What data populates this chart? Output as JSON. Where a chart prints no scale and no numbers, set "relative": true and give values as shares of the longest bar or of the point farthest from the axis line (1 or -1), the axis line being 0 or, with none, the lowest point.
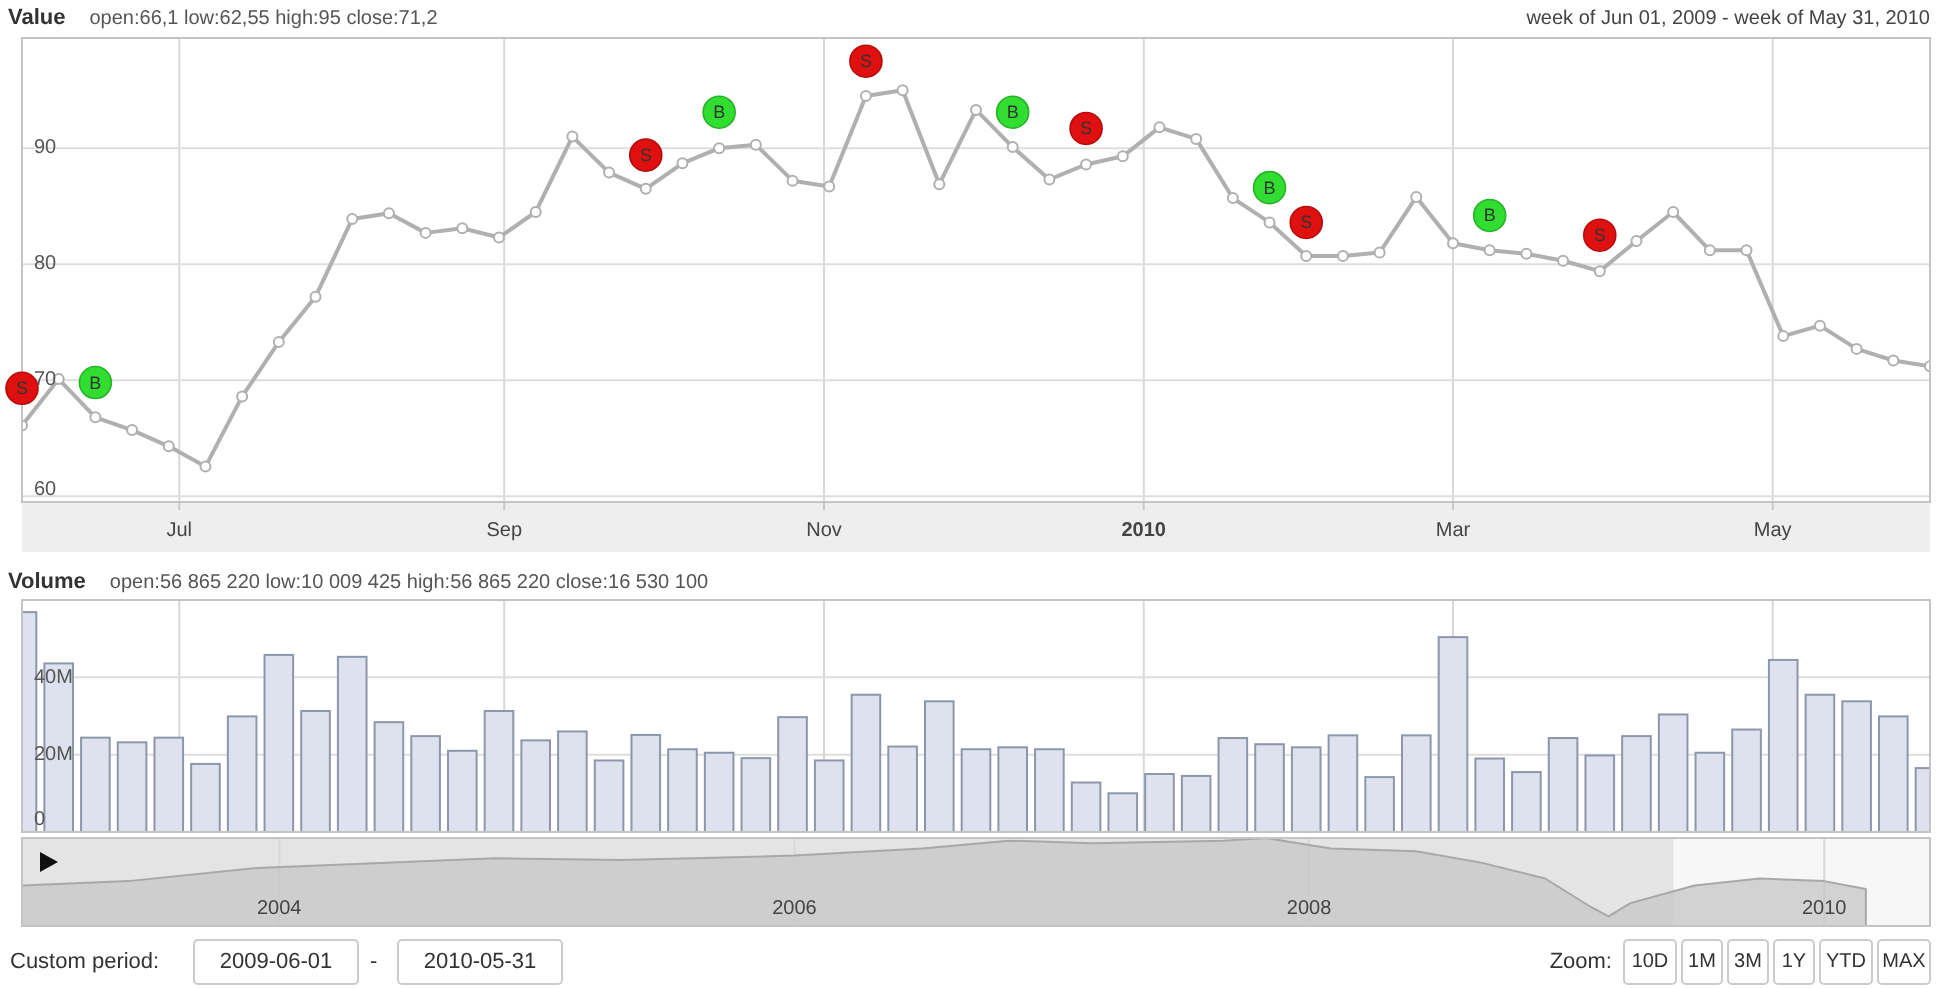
{
  "chart_data": [
    {
      "type": "line",
      "title": "Value",
      "subtitle": "open:66,1 low:62,55 high:95 close:71,2",
      "marker": "circle",
      "grid": true,
      "x": [
        "2009-06-01",
        "2009-06-08",
        "2009-06-15",
        "2009-06-22",
        "2009-06-29",
        "2009-07-06",
        "2009-07-13",
        "2009-07-20",
        "2009-07-27",
        "2009-08-03",
        "2009-08-10",
        "2009-08-17",
        "2009-08-24",
        "2009-08-31",
        "2009-09-07",
        "2009-09-14",
        "2009-09-21",
        "2009-09-28",
        "2009-10-05",
        "2009-10-12",
        "2009-10-19",
        "2009-10-26",
        "2009-11-02",
        "2009-11-09",
        "2009-11-16",
        "2009-11-23",
        "2009-11-30",
        "2009-12-07",
        "2009-12-14",
        "2009-12-21",
        "2009-12-28",
        "2010-01-04",
        "2010-01-11",
        "2010-01-18",
        "2010-01-25",
        "2010-02-01",
        "2010-02-08",
        "2010-02-15",
        "2010-02-22",
        "2010-03-01",
        "2010-03-08",
        "2010-03-15",
        "2010-03-22",
        "2010-03-29",
        "2010-04-05",
        "2010-04-12",
        "2010-04-19",
        "2010-04-26",
        "2010-05-03",
        "2010-05-10",
        "2010-05-17",
        "2010-05-24",
        "2010-05-31"
      ],
      "xlim": [
        "2009-06-01",
        "2010-05-31"
      ],
      "xticks": [
        {
          "value": "2009-07-01",
          "label": "Jul"
        },
        {
          "value": "2009-09-01",
          "label": "Sep"
        },
        {
          "value": "2009-11-01",
          "label": "Nov"
        },
        {
          "value": "2010-01-01",
          "label": "2010"
        },
        {
          "value": "2010-03-01",
          "label": "Mar"
        },
        {
          "value": "2010-05-01",
          "label": "May"
        }
      ],
      "ylim": [
        59.5,
        99.5
      ],
      "yticks": [
        60,
        70,
        80,
        90
      ],
      "series": [
        {
          "color": "#b0b0b0",
          "values": [
            66.1,
            70.1,
            66.8,
            65.7,
            64.3,
            62.55,
            68.6,
            73.3,
            77.2,
            83.9,
            84.4,
            82.7,
            83.1,
            82.3,
            84.5,
            91.0,
            87.9,
            86.5,
            88.7,
            90.0,
            90.3,
            87.2,
            86.7,
            94.5,
            95,
            86.9,
            93.3,
            90.1,
            87.3,
            88.6,
            89.3,
            91.8,
            90.8,
            85.7,
            83.6,
            80.7,
            80.7,
            81.0,
            85.8,
            81.8,
            81.2,
            80.9,
            80.3,
            79.4,
            82.0,
            84.5,
            81.2,
            81.2,
            73.8,
            74.7,
            72.7,
            71.7,
            71.2
          ]
        },
        {
          "type": "scatter",
          "color": "#e01010",
          "x": [
            "2009-06-01",
            "2009-09-28",
            "2009-11-09",
            "2009-12-21",
            "2010-02-01",
            "2010-03-29"
          ],
          "values": [
            69.3,
            89.4,
            97.5,
            91.7,
            83.6,
            82.5
          ]
        },
        {
          "type": "scatter",
          "color": "#30dd30",
          "x": [
            "2009-06-15",
            "2009-10-12",
            "2009-12-07",
            "2010-01-25",
            "2010-03-08"
          ],
          "values": [
            69.8,
            93.1,
            93.1,
            86.6,
            84.2
          ]
        }
      ],
      "annotations": [
        "week of Jun 01, 2009 - week of May 31, 2010",
        {
          "text": "S",
          "x": "2009-06-01",
          "y": 69.3
        },
        {
          "text": "B",
          "x": "2009-06-15",
          "y": 69.8
        },
        {
          "text": "S",
          "x": "2009-09-28",
          "y": 89.4
        },
        {
          "text": "B",
          "x": "2009-10-12",
          "y": 93.1
        },
        {
          "text": "S",
          "x": "2009-11-09",
          "y": 97.5
        },
        {
          "text": "B",
          "x": "2009-12-07",
          "y": 93.1
        },
        {
          "text": "S",
          "x": "2009-12-21",
          "y": 91.7
        },
        {
          "text": "B",
          "x": "2010-01-25",
          "y": 86.6
        },
        {
          "text": "S",
          "x": "2010-02-01",
          "y": 83.6
        },
        {
          "text": "B",
          "x": "2010-03-08",
          "y": 84.2
        },
        {
          "text": "S",
          "x": "2010-03-29",
          "y": 82.5
        }
      ]
    },
    {
      "type": "bar",
      "title": "Volume",
      "subtitle": "open:56 865 220 low:10 009 425 high:56 865 220 close:16 530 100",
      "grid": true,
      "tick_labels": "y",
      "x": [
        "2009-06-01",
        "2009-06-08",
        "2009-06-15",
        "2009-06-22",
        "2009-06-29",
        "2009-07-06",
        "2009-07-13",
        "2009-07-20",
        "2009-07-27",
        "2009-08-03",
        "2009-08-10",
        "2009-08-17",
        "2009-08-24",
        "2009-08-31",
        "2009-09-07",
        "2009-09-14",
        "2009-09-21",
        "2009-09-28",
        "2009-10-05",
        "2009-10-12",
        "2009-10-19",
        "2009-10-26",
        "2009-11-02",
        "2009-11-09",
        "2009-11-16",
        "2009-11-23",
        "2009-11-30",
        "2009-12-07",
        "2009-12-14",
        "2009-12-21",
        "2009-12-28",
        "2010-01-04",
        "2010-01-11",
        "2010-01-18",
        "2010-01-25",
        "2010-02-01",
        "2010-02-08",
        "2010-02-15",
        "2010-02-22",
        "2010-03-01",
        "2010-03-08",
        "2010-03-15",
        "2010-03-22",
        "2010-03-29",
        "2010-04-05",
        "2010-04-12",
        "2010-04-19",
        "2010-04-26",
        "2010-05-03",
        "2010-05-10",
        "2010-05-17",
        "2010-05-24",
        "2010-05-31"
      ],
      "xlim": [
        "2009-06-01",
        "2010-05-31"
      ],
      "xticks": [
        {
          "value": "2009-07-01",
          "label": null
        },
        {
          "value": "2009-09-01",
          "label": null
        },
        {
          "value": "2009-11-01",
          "label": null
        },
        {
          "value": "2010-01-01",
          "label": null
        },
        {
          "value": "2010-03-01",
          "label": null
        },
        {
          "value": "2010-05-01",
          "label": null
        }
      ],
      "ylim": [
        0,
        60000000
      ],
      "yticks": [
        {
          "value": 0,
          "label": "0"
        },
        {
          "value": 20000000,
          "label": "20M"
        },
        {
          "value": 40000000,
          "label": "40M"
        }
      ],
      "series": [
        {
          "color": "#dde2ee",
          "values": [
            56865220,
            43600000,
            24400000,
            23200000,
            24400000,
            17600000,
            29900000,
            45800000,
            31300000,
            45300000,
            28400000,
            24800000,
            21000000,
            31300000,
            23700000,
            26000000,
            18500000,
            25100000,
            21400000,
            20500000,
            19100000,
            29700000,
            18500000,
            35500000,
            22100000,
            33800000,
            21400000,
            21900000,
            21400000,
            12800000,
            10009425,
            15000000,
            14500000,
            24300000,
            22700000,
            21900000,
            25000000,
            14200000,
            25000000,
            50400000,
            19000000,
            15500000,
            24300000,
            19800000,
            24800000,
            30400000,
            20500000,
            26500000,
            44500000,
            35500000,
            33800000,
            29900000,
            16530100
          ]
        }
      ]
    },
    {
      "type": "area",
      "relative": true,
      "grid": "x",
      "x": [
        "2003-01",
        "2003-06",
        "2003-12",
        "2004-06",
        "2004-11",
        "2005-05",
        "2006-01",
        "2006-07",
        "2006-11",
        "2007-03",
        "2007-09",
        "2007-11",
        "2008-02",
        "2008-06",
        "2008-09",
        "2008-12",
        "2009-02",
        "2009-03",
        "2009-04",
        "2009-07",
        "2009-10",
        "2010-01",
        "2010-03"
      ],
      "xlim": [
        "2003-01-01",
        "2010-05-31"
      ],
      "xticks": [
        {
          "value": "2004-01-01",
          "label": "2004"
        },
        {
          "value": "2006-01-01",
          "label": "2006"
        },
        {
          "value": "2008-01-01",
          "label": "2008"
        },
        {
          "value": "2010-01-01",
          "label": "2010"
        }
      ],
      "series": [
        {
          "color": "#c8c8c8",
          "values": [
            0.46,
            0.51,
            0.66,
            0.72,
            0.77,
            0.75,
            0.8,
            0.88,
            0.97,
            0.94,
            0.97,
            1,
            0.88,
            0.85,
            0.72,
            0.54,
            0.23,
            0.11,
            0.26,
            0.46,
            0.54,
            0.51,
            0.42
          ]
        }
      ],
      "bands": [
        {
          "axis": "x",
          "from": "2009-06-01",
          "to": "2010-05-31",
          "color": "#f7f7f7"
        }
      ]
    },
    {
      "type": "other",
      "annotations": [
        "Custom period:",
        "2009-06-01",
        "-",
        "2010-05-31",
        "Zoom:",
        "10D",
        "1M",
        "3M",
        "1Y",
        "YTD",
        "MAX"
      ]
    }
  ]
}
